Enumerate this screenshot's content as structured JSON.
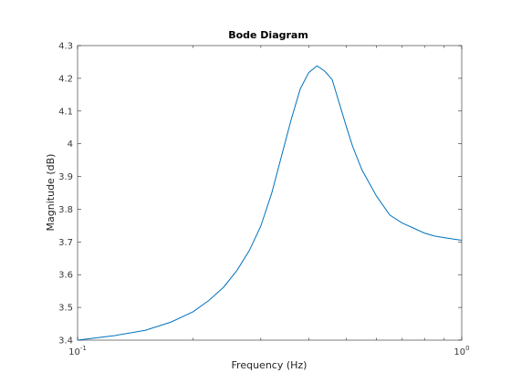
{
  "chart_data": {
    "type": "line",
    "title": "Bode Diagram",
    "xlabel": "Frequency  (Hz)",
    "ylabel": "Magnitude (dB)",
    "xscale": "log",
    "xlim": [
      0.1,
      1
    ],
    "ylim": [
      3.4,
      4.3
    ],
    "grid": false,
    "colors": {
      "series": "#0072BD",
      "axes": "#262626"
    },
    "x_ticks": [
      {
        "value": 0.1,
        "base": "10",
        "exponent": "-1"
      },
      {
        "value": 1,
        "base": "10",
        "exponent": "0"
      }
    ],
    "y_ticks": [
      {
        "value": 3.4,
        "label": "3.4"
      },
      {
        "value": 3.5,
        "label": "3.5"
      },
      {
        "value": 3.6,
        "label": "3.6"
      },
      {
        "value": 3.7,
        "label": "3.7"
      },
      {
        "value": 3.8,
        "label": "3.8"
      },
      {
        "value": 3.9,
        "label": "3.9"
      },
      {
        "value": 4.0,
        "label": "4"
      },
      {
        "value": 4.1,
        "label": "4.1"
      },
      {
        "value": 4.2,
        "label": "4.2"
      },
      {
        "value": 4.3,
        "label": "4.3"
      }
    ],
    "series": [
      {
        "x": [
          0.1,
          0.125,
          0.15,
          0.175,
          0.2,
          0.22,
          0.24,
          0.26,
          0.28,
          0.3,
          0.32,
          0.34,
          0.36,
          0.38,
          0.4,
          0.42,
          0.44,
          0.46,
          0.48,
          0.5,
          0.52,
          0.55,
          0.6,
          0.65,
          0.7,
          0.75,
          0.8,
          0.85,
          0.9,
          0.95,
          1.0
        ],
        "y": [
          3.4,
          3.414,
          3.43,
          3.455,
          3.487,
          3.522,
          3.562,
          3.613,
          3.674,
          3.749,
          3.848,
          3.965,
          4.075,
          4.168,
          4.218,
          4.238,
          4.222,
          4.196,
          4.124,
          4.055,
          3.992,
          3.92,
          3.84,
          3.782,
          3.758,
          3.742,
          3.727,
          3.718,
          3.713,
          3.709,
          3.705
        ]
      }
    ]
  }
}
